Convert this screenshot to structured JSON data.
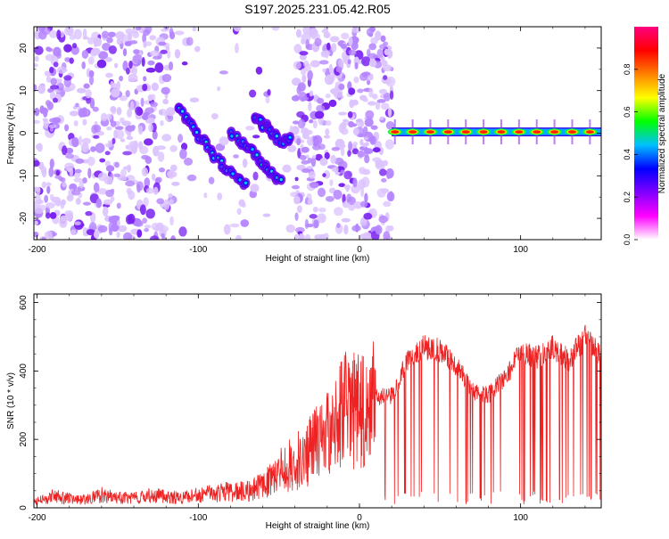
{
  "title": "S197.2025.231.05.42.R05",
  "chart_data": [
    {
      "type": "heatmap",
      "title": "S197.2025.231.05.42.R05",
      "xlabel": "Height of straight line (km)",
      "ylabel": "Frequency (Hz)",
      "xlim": [
        -202,
        150
      ],
      "ylim": [
        -25,
        25
      ],
      "x_ticks": [
        -200,
        -100,
        0,
        100
      ],
      "y_ticks": [
        -20,
        -10,
        0,
        10,
        20
      ],
      "colorbar": {
        "label": "Normalized spectral amplitude",
        "range": [
          0,
          1
        ],
        "ticks": [
          "0.0",
          "0.2",
          "0.4",
          "0.6",
          "0.8"
        ],
        "tick_values": [
          0,
          0.2,
          0.4,
          0.6,
          0.8
        ],
        "colors": [
          "#ffffff",
          "#ff00ff",
          "#8000ff",
          "#0000ff",
          "#00c0ff",
          "#00ff00",
          "#ffff00",
          "#ff8000",
          "#ff0000",
          "#ff0080"
        ]
      },
      "features": [
        {
          "name": "diffuse noise region",
          "x_range": [
            -202,
            20
          ],
          "frequency_range": [
            -25,
            25
          ],
          "amplitude": 0.05
        },
        {
          "name": "descending trace A",
          "points": [
            [
              -112,
              6
            ],
            [
              -105,
              2
            ],
            [
              -97,
              -2
            ],
            [
              -88,
              -6
            ],
            [
              -78,
              -10
            ],
            [
              -70,
              -12
            ]
          ],
          "amplitude": 0.35
        },
        {
          "name": "descending trace B",
          "points": [
            [
              -80,
              0
            ],
            [
              -70,
              -3
            ],
            [
              -62,
              -6
            ],
            [
              -55,
              -9
            ],
            [
              -48,
              -12
            ]
          ],
          "amplitude": 0.3
        },
        {
          "name": "cluster",
          "points": [
            [
              -65,
              4
            ],
            [
              -60,
              2
            ],
            [
              -55,
              0
            ],
            [
              -48,
              -2
            ],
            [
              -42,
              -1
            ]
          ],
          "amplitude": 0.3
        },
        {
          "name": "zero-frequency line",
          "x_range": [
            20,
            150
          ],
          "frequency": 0.3,
          "amplitude": 0.95
        }
      ]
    },
    {
      "type": "line",
      "xlabel": "Height of straight line (km)",
      "ylabel": "SNR (10 * v/v)",
      "xlim": [
        -202,
        150
      ],
      "ylim": [
        0,
        625
      ],
      "x_ticks": [
        -200,
        -100,
        0,
        100
      ],
      "y_ticks": [
        0,
        200,
        400,
        600
      ],
      "series": [
        {
          "name": "SNR",
          "color": "#ee2222",
          "x": [
            -200,
            -190,
            -180,
            -170,
            -160,
            -150,
            -140,
            -130,
            -120,
            -110,
            -100,
            -90,
            -80,
            -70,
            -60,
            -50,
            -40,
            -30,
            -20,
            -12,
            -10,
            0,
            10,
            20,
            30,
            40,
            50,
            60,
            70,
            80,
            90,
            100,
            110,
            120,
            130,
            140,
            150
          ],
          "y": [
            20,
            35,
            30,
            25,
            40,
            30,
            30,
            40,
            35,
            30,
            40,
            45,
            50,
            50,
            70,
            110,
            140,
            180,
            230,
            270,
            300,
            300,
            320,
            330,
            430,
            470,
            460,
            420,
            340,
            330,
            380,
            450,
            440,
            470,
            430,
            500,
            440
          ]
        }
      ]
    }
  ]
}
